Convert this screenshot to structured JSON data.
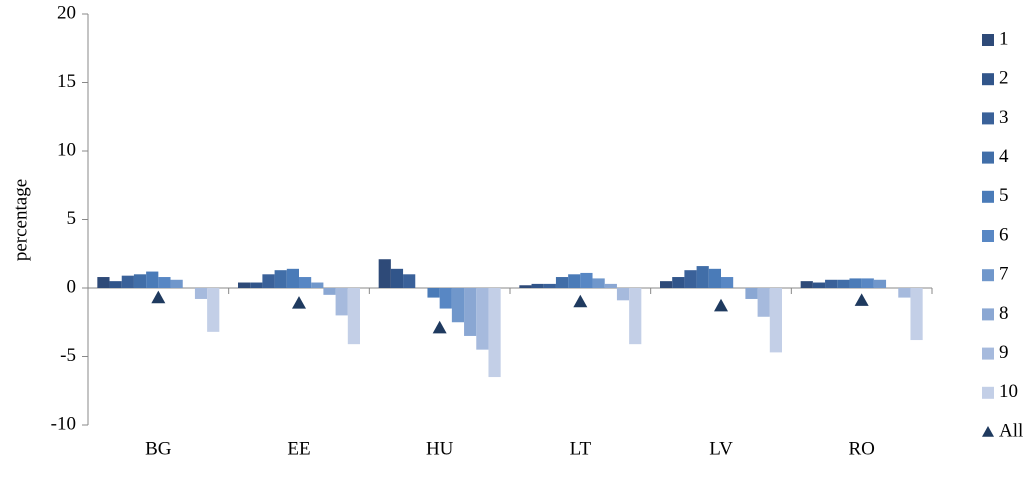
{
  "chart_data": {
    "type": "bar",
    "y_label": "percentage",
    "categories": [
      "BG",
      "EE",
      "HU",
      "LT",
      "LV",
      "RO"
    ],
    "ylim": [
      -10,
      20
    ],
    "yticks": [
      -10,
      -5,
      0,
      5,
      10,
      15,
      20
    ],
    "series": [
      {
        "name": "1",
        "color": "#2e4a78",
        "values": [
          0.8,
          0.4,
          2.1,
          0.2,
          0.5,
          0.5
        ]
      },
      {
        "name": "2",
        "color": "#31558a",
        "values": [
          0.5,
          0.4,
          1.4,
          0.3,
          0.8,
          0.4
        ]
      },
      {
        "name": "3",
        "color": "#3a6199",
        "values": [
          0.9,
          1.0,
          1.0,
          0.3,
          1.3,
          0.6
        ]
      },
      {
        "name": "4",
        "color": "#416ea8",
        "values": [
          1.0,
          1.3,
          0,
          0.8,
          1.6,
          0.6
        ]
      },
      {
        "name": "5",
        "color": "#4a7bb8",
        "values": [
          1.2,
          1.4,
          -0.7,
          1.0,
          1.4,
          0.7
        ]
      },
      {
        "name": "6",
        "color": "#5887c4",
        "values": [
          0.8,
          0.8,
          -1.5,
          1.1,
          0.8,
          0.7
        ]
      },
      {
        "name": "7",
        "color": "#7097cb",
        "values": [
          0.6,
          0.4,
          -2.5,
          0.7,
          0,
          0.6
        ]
      },
      {
        "name": "8",
        "color": "#8aa7d3",
        "values": [
          0,
          -0.5,
          -3.5,
          0.3,
          -0.8,
          0
        ]
      },
      {
        "name": "9",
        "color": "#a6badd",
        "values": [
          -0.8,
          -2.0,
          -4.5,
          -0.9,
          -2.1,
          -0.7
        ]
      },
      {
        "name": "10",
        "color": "#c3cfe7",
        "values": [
          -3.2,
          -4.1,
          -6.5,
          -4.1,
          -4.7,
          -3.8
        ]
      },
      {
        "name": "All",
        "color": "#1f3a5f",
        "marker": "triangle",
        "values": [
          -0.7,
          -1.1,
          -2.9,
          -1.0,
          -1.3,
          -0.9
        ]
      }
    ]
  }
}
